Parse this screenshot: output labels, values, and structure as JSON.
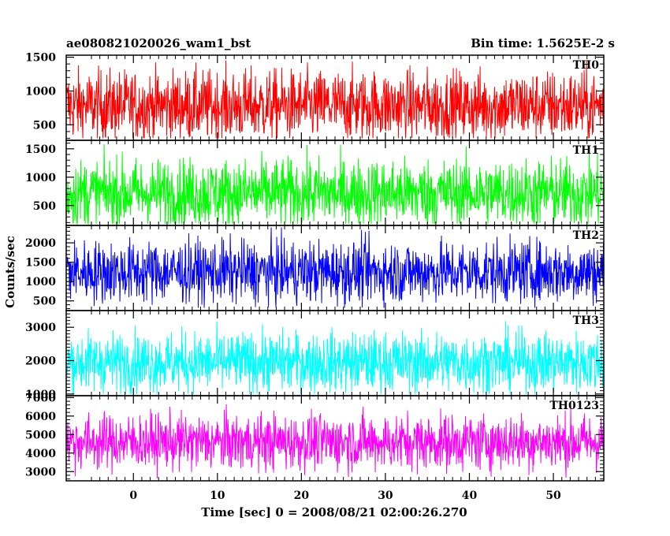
{
  "header": {
    "title": "ae080821020026_wam1_bst",
    "bin_time": "Bin time: 1.5625E-2 s"
  },
  "chart_data": {
    "type": "line",
    "xlabel": "Time [sec] 0 = 2008/08/21 02:00:26.270",
    "ylabel": "Counts/sec",
    "xlim": [
      -8,
      56
    ],
    "x_ticks": [
      0,
      10,
      20,
      30,
      40,
      50
    ],
    "x_start": -7.9,
    "x_end": 56.1,
    "grid": false,
    "panels": [
      {
        "name": "TH0",
        "color": "#ff0000",
        "ylim": [
          270,
          1530
        ],
        "y_ticks": [
          500,
          1000,
          1500
        ],
        "mean": 780,
        "spread": 260,
        "min_clip": 300,
        "max_clip": 1500
      },
      {
        "name": "TH1",
        "color": "#00ff00",
        "ylim": [
          150,
          1650
        ],
        "y_ticks": [
          500,
          1000,
          1500
        ],
        "mean": 720,
        "spread": 300,
        "min_clip": 180,
        "max_clip": 1580
      },
      {
        "name": "TH2",
        "color": "#0000ff",
        "ylim": [
          250,
          2450
        ],
        "y_ticks": [
          500,
          1000,
          1500,
          2000
        ],
        "mean": 1250,
        "spread": 400,
        "min_clip": 320,
        "max_clip": 2400
      },
      {
        "name": "TH3",
        "color": "#00ffff",
        "ylim": [
          950,
          3500
        ],
        "y_ticks": [
          1000,
          2000,
          3000
        ],
        "mean": 1950,
        "spread": 450,
        "min_clip": 1000,
        "max_clip": 3400
      },
      {
        "name": "TH0123",
        "color": "#ff00ff",
        "ylim": [
          2500,
          7100
        ],
        "y_ticks": [
          3000,
          4000,
          5000,
          6000,
          7000
        ],
        "mean": 4600,
        "spread": 750,
        "min_clip": 2600,
        "max_clip": 7050
      }
    ]
  }
}
